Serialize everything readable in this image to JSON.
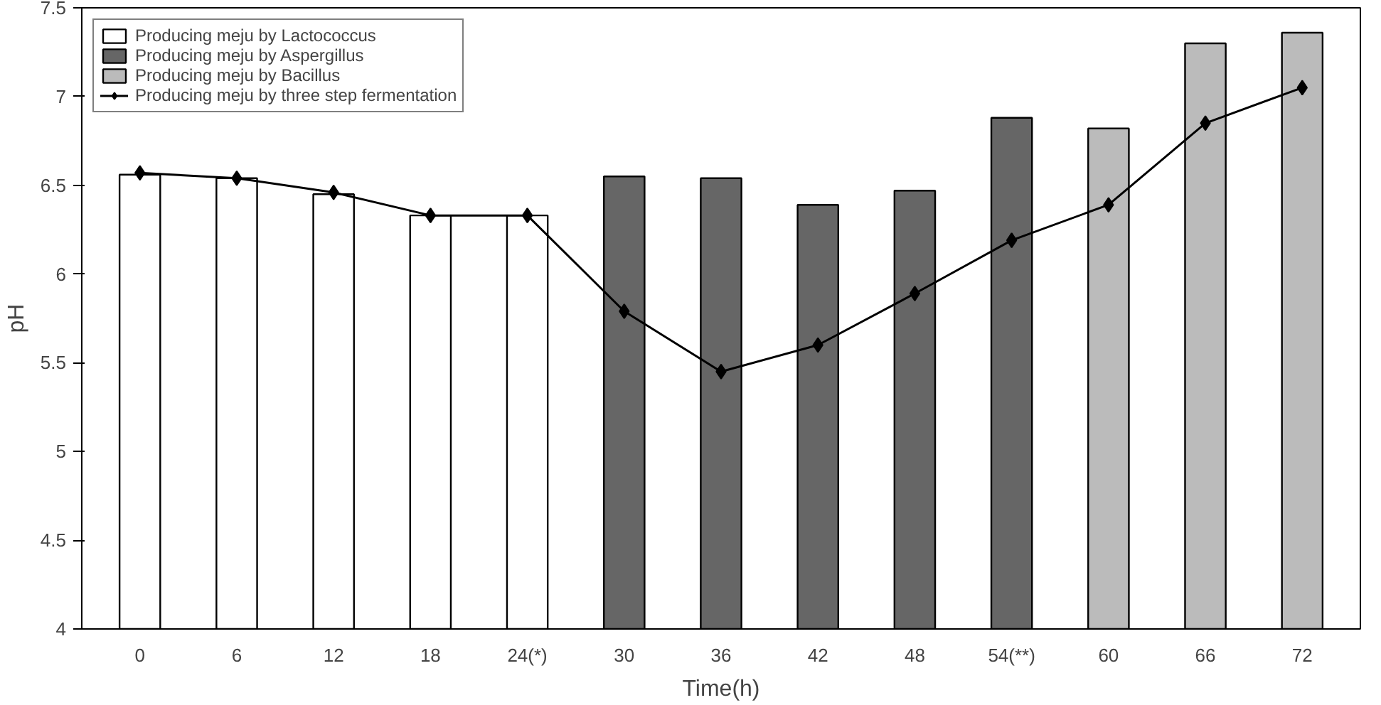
{
  "chart_data": {
    "type": "bar",
    "xlabel": "Time(h)",
    "ylabel": "pH",
    "categories": [
      "0",
      "6",
      "12",
      "18",
      "24(*)",
      "30",
      "36",
      "42",
      "48",
      "54(**)",
      "60",
      "66",
      "72"
    ],
    "series": [
      {
        "name": "Producing meju by Lactococcus",
        "color": "#ffffff",
        "values": [
          6.56,
          6.54,
          6.45,
          6.33,
          6.33,
          null,
          null,
          null,
          null,
          null,
          null,
          null,
          null
        ]
      },
      {
        "name": "Producing meju by Aspergillus",
        "color": "#666666",
        "values": [
          null,
          null,
          null,
          null,
          null,
          6.55,
          6.54,
          6.39,
          6.47,
          6.88,
          null,
          null,
          null
        ]
      },
      {
        "name": "Producing meju by Bacillus",
        "color": "#bbbbbb",
        "values": [
          null,
          null,
          null,
          null,
          null,
          null,
          null,
          null,
          null,
          null,
          6.82,
          7.3,
          7.36
        ]
      },
      {
        "name": "Producing meju by three step fermentation",
        "type": "line",
        "color": "#000000",
        "marker": "diamond",
        "values": [
          6.57,
          6.54,
          6.46,
          6.33,
          6.33,
          5.79,
          5.45,
          5.6,
          5.89,
          6.19,
          6.39,
          6.85,
          7.05
        ]
      }
    ],
    "ylim": [
      4,
      7.5
    ],
    "yticks": [
      4,
      4.5,
      5,
      5.5,
      6,
      6.5,
      7,
      7.5
    ],
    "grid": false,
    "legend": "top left"
  }
}
